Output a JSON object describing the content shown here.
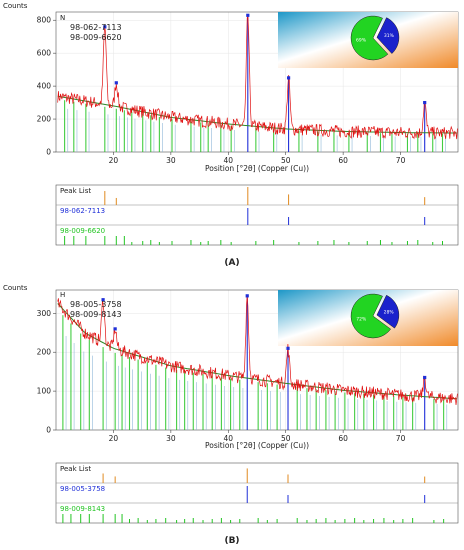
{
  "colors": {
    "ref1": "#1f2fd8",
    "ref2": "#22c422",
    "measured": "#e01010",
    "background_fit": "#2a8a2a",
    "peaklist": "#e08a20",
    "pie_blue": "#1a22cc",
    "pie_green": "#22d422"
  },
  "panels": [
    {
      "caption": "(A)",
      "counts_label": "Counts",
      "panel_letter": "N",
      "legend": [
        "98-062-7113",
        "98-009-6620"
      ],
      "pie_labels": [
        "31%",
        "69%"
      ],
      "xlabel": "Position [°2θ] (Copper (Cu))",
      "stick_labels": [
        "Peak List",
        "98-062-7113",
        "98-009-6620"
      ]
    },
    {
      "caption": "(B)",
      "counts_label": "Counts",
      "panel_letter": "H",
      "legend": [
        "98-005-3758",
        "98-009-8143"
      ],
      "pie_labels": [
        "28%",
        "72%"
      ],
      "xlabel": "Position [°2θ] (Copper (Cu))",
      "stick_labels": [
        "Peak List",
        "98-005-3758",
        "98-009-8143"
      ]
    }
  ],
  "chart_data": [
    {
      "type": "line",
      "xlabel": "Position [°2θ] (Copper (Cu))",
      "ylabel": "Counts",
      "xlim": [
        10,
        80
      ],
      "ylim": [
        0,
        850
      ],
      "xticks": [
        20,
        30,
        40,
        50,
        60,
        70
      ],
      "yticks": [
        0,
        200,
        400,
        600,
        800
      ],
      "background": [
        [
          10,
          340
        ],
        [
          20,
          280
        ],
        [
          30,
          210
        ],
        [
          40,
          170
        ],
        [
          50,
          140
        ],
        [
          60,
          125
        ],
        [
          70,
          118
        ],
        [
          80,
          115
        ]
      ],
      "peaks": [
        {
          "x": 18.5,
          "y": 760,
          "phase": "98-009-6620"
        },
        {
          "x": 20.5,
          "y": 420,
          "phase": "98-009-6620"
        },
        {
          "x": 43.4,
          "y": 830,
          "phase": "98-062-7113"
        },
        {
          "x": 50.5,
          "y": 450,
          "phase": "98-062-7113"
        },
        {
          "x": 74.2,
          "y": 300,
          "phase": "98-062-7113"
        }
      ],
      "pie": [
        {
          "label": "31%",
          "value": 31
        },
        {
          "label": "69%",
          "value": 69
        }
      ],
      "series": [
        {
          "name": "98-062-7113",
          "sticks": [
            43.4,
            50.5,
            74.2
          ]
        },
        {
          "name": "98-009-6620",
          "sticks": [
            11.5,
            13.1,
            15.2,
            18.5,
            20.5,
            21.9,
            23.2,
            25.1,
            26.5,
            28.0,
            30.2,
            33.5,
            35.2,
            36.5,
            38.7,
            40.5,
            44.8,
            47.9,
            52.3,
            55.6,
            58.4,
            61.0,
            64.2,
            66.5,
            68.5,
            71.2,
            73.0,
            75.6,
            77.3
          ]
        }
      ]
    },
    {
      "type": "line",
      "xlabel": "Position [°2θ] (Copper (Cu))",
      "ylabel": "Counts",
      "xlim": [
        10,
        80
      ],
      "ylim": [
        0,
        360
      ],
      "xticks": [
        20,
        30,
        40,
        50,
        60,
        70
      ],
      "yticks": [
        0,
        100,
        200,
        300
      ],
      "background": [
        [
          10,
          330
        ],
        [
          15,
          250
        ],
        [
          20,
          210
        ],
        [
          30,
          165
        ],
        [
          40,
          140
        ],
        [
          50,
          120
        ],
        [
          60,
          102
        ],
        [
          70,
          90
        ],
        [
          80,
          80
        ]
      ],
      "peaks": [
        {
          "x": 18.2,
          "y": 335,
          "phase": "98-009-8143"
        },
        {
          "x": 20.3,
          "y": 260,
          "phase": "98-009-8143"
        },
        {
          "x": 43.3,
          "y": 345,
          "phase": "98-005-3758"
        },
        {
          "x": 50.4,
          "y": 210,
          "phase": "98-005-3758"
        },
        {
          "x": 74.2,
          "y": 135,
          "phase": "98-005-3758"
        }
      ],
      "pie": [
        {
          "label": "28%",
          "value": 28
        },
        {
          "label": "72%",
          "value": 72
        }
      ],
      "series": [
        {
          "name": "98-005-3758",
          "sticks": [
            43.3,
            50.4,
            74.2
          ]
        },
        {
          "name": "98-009-8143",
          "sticks": [
            11.2,
            12.6,
            14.3,
            15.8,
            18.2,
            20.3,
            21.5,
            22.8,
            24.3,
            25.9,
            27.4,
            29.1,
            31.0,
            32.4,
            33.9,
            35.6,
            37.2,
            38.8,
            40.4,
            42.0,
            45.2,
            46.8,
            48.5,
            52.0,
            53.7,
            55.3,
            57.0,
            58.6,
            60.3,
            62.0,
            63.6,
            65.3,
            67.1,
            68.8,
            70.4,
            72.1,
            75.8,
            77.5
          ]
        }
      ]
    }
  ]
}
